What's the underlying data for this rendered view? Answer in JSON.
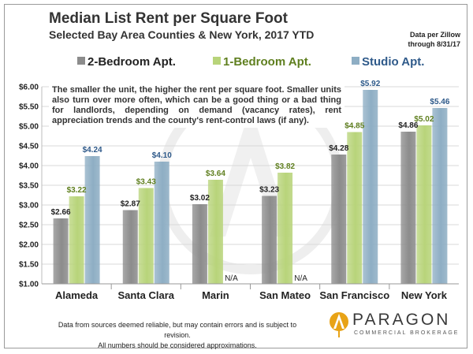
{
  "header": {
    "title": "Median List Rent per Square Foot",
    "subtitle": "Selected Bay Area Counties & New York, 2017 YTD",
    "source_line1": "Data per Zillow",
    "source_line2": "through 8/31/17"
  },
  "note": "The smaller the unit, the higher the rent per square foot. Smaller units also turn over more often, which can be a good thing or a bad thing for landlords, depending on demand (vacancy rates), rent appreciation trends and the county's rent-control laws (if any).",
  "footer": {
    "line1": "Data from sources deemed reliable, but may contain errors and is subject to revision.",
    "line2": "All numbers should be considered approximations."
  },
  "logo": {
    "name": "PARAGON",
    "tagline": "COMMERCIAL BROKERAGE"
  },
  "colors": {
    "two_bed": "#8c8c8c",
    "one_bed": "#b8d47a",
    "studio": "#8eaec4",
    "one_bed_label": "#5f7f1f",
    "studio_label": "#2f5a8a",
    "axis_label": "#222222",
    "grid": "#d9d9d9",
    "logo_gold": "#e8a317"
  },
  "chart_data": {
    "type": "bar",
    "categories": [
      "Alameda",
      "Santa Clara",
      "Marin",
      "San Mateo",
      "San Francisco",
      "New York"
    ],
    "series": [
      {
        "name": "2-Bedroom Apt.",
        "values": [
          2.66,
          2.87,
          3.02,
          3.23,
          4.28,
          4.86
        ],
        "labels": [
          "$2.66",
          "$2.87",
          "$3.02",
          "$3.23",
          "$4.28",
          "$4.86"
        ]
      },
      {
        "name": "1-Bedroom Apt.",
        "values": [
          3.22,
          3.43,
          3.64,
          3.82,
          4.85,
          5.02
        ],
        "labels": [
          "$3.22",
          "$3.43",
          "$3.64",
          "$3.82",
          "$4.85",
          "$5.02"
        ]
      },
      {
        "name": "Studio Apt.",
        "values": [
          4.24,
          4.1,
          null,
          null,
          5.92,
          5.46
        ],
        "labels": [
          "$4.24",
          "$4.10",
          "N/A",
          "N/A",
          "$5.92",
          "$5.46"
        ]
      }
    ],
    "ylim": [
      1.0,
      6.0
    ],
    "yticks": [
      1.0,
      1.5,
      2.0,
      2.5,
      3.0,
      3.5,
      4.0,
      4.5,
      5.0,
      5.5,
      6.0
    ],
    "ytick_labels": [
      "$1.00",
      "$1.50",
      "$2.00",
      "$2.50",
      "$3.00",
      "$3.50",
      "$4.00",
      "$4.50",
      "$5.00",
      "$5.50",
      "$6.00"
    ],
    "grid": true,
    "legend": "top"
  }
}
